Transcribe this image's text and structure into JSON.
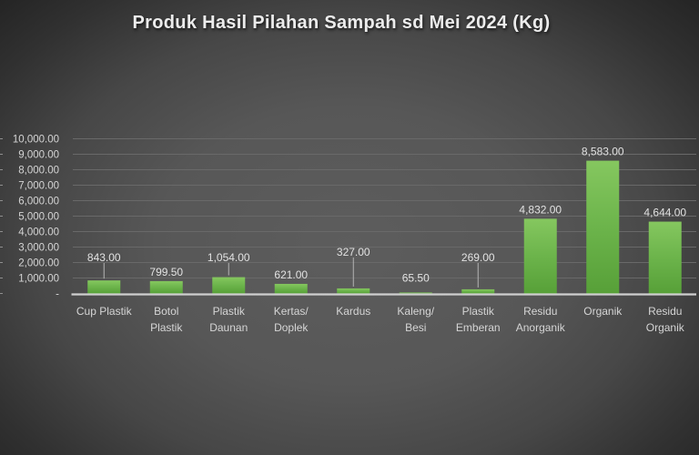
{
  "chart_data": {
    "type": "bar",
    "title": "Produk Hasil Pilahan Sampah sd Mei 2024 (Kg)",
    "categories": [
      "Cup Plastik",
      "Botol Plastik",
      "Plastik Daunan",
      "Kertas/Doplek",
      "Kardus",
      "Kaleng/Besi",
      "Plastik Emberan",
      "Residu Anorganik",
      "Organik",
      "Residu Organik"
    ],
    "categories_lines": [
      [
        "Cup Plastik"
      ],
      [
        "Botol",
        "Plastik"
      ],
      [
        "Plastik",
        "Daunan"
      ],
      [
        "Kertas/",
        "Doplek"
      ],
      [
        "Kardus"
      ],
      [
        "Kaleng/",
        "Besi"
      ],
      [
        "Plastik",
        "Emberan"
      ],
      [
        "Residu",
        "Anorganik"
      ],
      [
        "Organik"
      ],
      [
        "Residu",
        "Organik"
      ]
    ],
    "values": [
      843.0,
      799.5,
      1054.0,
      621.0,
      327.0,
      65.5,
      269.0,
      4832.0,
      8583.0,
      4644.0
    ],
    "value_labels": [
      "843.00",
      "799.50",
      "1,054.00",
      "621.00",
      "327.00",
      "65.50",
      "269.00",
      "4,832.00",
      "8,583.00",
      "4,644.00"
    ],
    "xlabel": "",
    "ylabel": "",
    "ylim": [
      0,
      10000
    ],
    "y_tick_step": 1000,
    "y_tick_labels": [
      "-",
      "1,000.00",
      "2,000.00",
      "3,000.00",
      "4,000.00",
      "5,000.00",
      "6,000.00",
      "7,000.00",
      "8,000.00",
      "9,000.00",
      "10,000.00"
    ],
    "grid": true,
    "legend": "none",
    "colors": {
      "bar_top": "#85c75f",
      "bar_mid": "#6cb44b",
      "bar_bottom": "#57a038",
      "grid_line": "#696969",
      "axis_line": "#cfcfcf",
      "leader_line": "#b5b5b5",
      "tick_mark": "#8f8f8f",
      "data_label_text": "#e2e2e2",
      "axis_text": "#d5d5d5",
      "title_text": "#ececec",
      "bg_center": "#5d5d5d",
      "bg_edge": "#212121"
    }
  }
}
